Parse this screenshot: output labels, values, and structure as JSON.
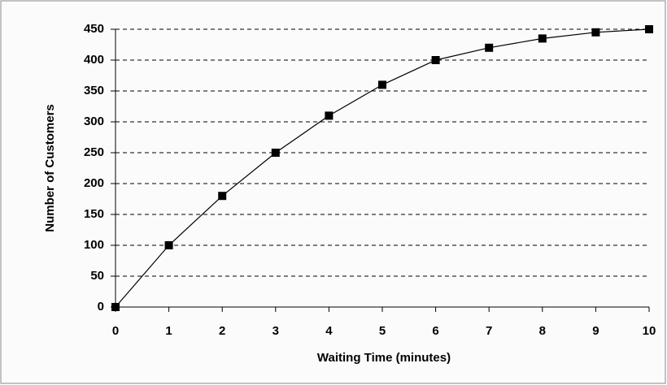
{
  "chart_data": {
    "type": "line",
    "x_label": "Waiting Time (minutes)",
    "y_label": "Number of Customers",
    "x": [
      0,
      1,
      2,
      3,
      4,
      5,
      6,
      7,
      8,
      9,
      10
    ],
    "series": [
      {
        "color": "#000000",
        "values": [
          0,
          100,
          180,
          250,
          310,
          360,
          400,
          420,
          435,
          445,
          450
        ]
      }
    ],
    "xlim": [
      0,
      10
    ],
    "xticks": [
      0,
      1,
      2,
      3,
      4,
      5,
      6,
      7,
      8,
      9,
      10
    ],
    "ylim": [
      0,
      450
    ],
    "yticks": [
      0,
      50,
      100,
      150,
      200,
      250,
      300,
      350,
      400,
      450
    ],
    "grid": true,
    "marker": "square"
  }
}
